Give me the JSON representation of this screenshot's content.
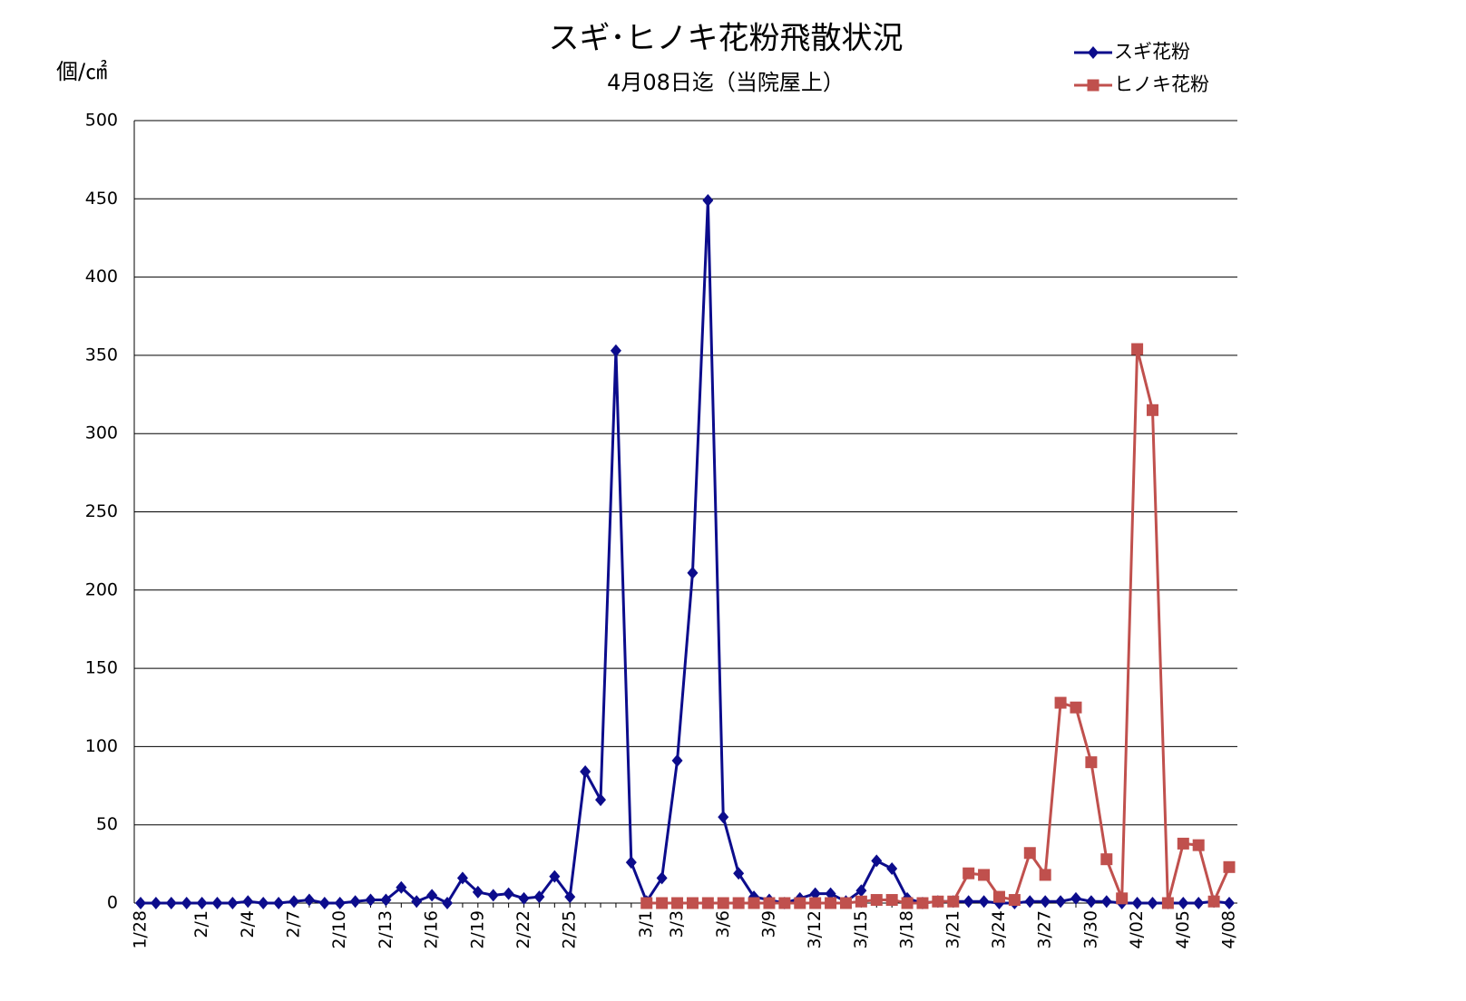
{
  "chart_data": {
    "type": "line",
    "title": "スギ･ヒノキ花粉飛散状況",
    "subtitle": "4月08日迄（当院屋上）",
    "y_label": "個/㎠",
    "legend": "top-right",
    "grid": true,
    "ylim": [
      0,
      500
    ],
    "yticks": [
      0,
      50,
      100,
      150,
      200,
      250,
      300,
      350,
      400,
      450,
      500
    ],
    "categories": [
      "1/28",
      null,
      null,
      null,
      "2/1",
      null,
      null,
      "2/4",
      null,
      null,
      "2/7",
      null,
      null,
      "2/10",
      null,
      null,
      "2/13",
      null,
      null,
      "2/16",
      null,
      null,
      "2/19",
      null,
      null,
      "2/22",
      null,
      null,
      "2/25",
      null,
      null,
      null,
      null,
      "3/1",
      null,
      "3/3",
      null,
      null,
      "3/6",
      null,
      null,
      "3/9",
      null,
      null,
      "3/12",
      null,
      null,
      "3/15",
      null,
      null,
      "3/18",
      null,
      null,
      "3/21",
      null,
      null,
      "3/24",
      null,
      null,
      "3/27",
      null,
      null,
      "3/30",
      null,
      null,
      "4/02",
      null,
      null,
      "4/05",
      null,
      null,
      "4/08"
    ],
    "series": [
      {
        "name": "スギ花粉",
        "color": "#0c0c8c",
        "marker": "diamond",
        "values": [
          0,
          0,
          0,
          0,
          0,
          0,
          0,
          1,
          0,
          0,
          1,
          2,
          0,
          0,
          1,
          2,
          2,
          10,
          1,
          5,
          0,
          16,
          7,
          5,
          6,
          3,
          4,
          17,
          4,
          84,
          66,
          353,
          26,
          1,
          16,
          91,
          211,
          449,
          55,
          19,
          4,
          2,
          0,
          3,
          6,
          6,
          1,
          8,
          27,
          22,
          3,
          0,
          1,
          1,
          1,
          1,
          0,
          0,
          1,
          1,
          1,
          3,
          1,
          1,
          0,
          0,
          0,
          0,
          0,
          0,
          1,
          0
        ]
      },
      {
        "name": "ヒノキ花粉",
        "color": "#c0504d",
        "marker": "square",
        "values": [
          null,
          null,
          null,
          null,
          null,
          null,
          null,
          null,
          null,
          null,
          null,
          null,
          null,
          null,
          null,
          null,
          null,
          null,
          null,
          null,
          null,
          null,
          null,
          null,
          null,
          null,
          null,
          null,
          null,
          null,
          null,
          null,
          null,
          0,
          0,
          0,
          0,
          0,
          0,
          0,
          0,
          0,
          0,
          0,
          0,
          0,
          0,
          1,
          2,
          2,
          0,
          0,
          1,
          1,
          19,
          18,
          4,
          2,
          32,
          18,
          128,
          125,
          90,
          28,
          3,
          354,
          315,
          0,
          38,
          37,
          1,
          23
        ]
      }
    ]
  }
}
